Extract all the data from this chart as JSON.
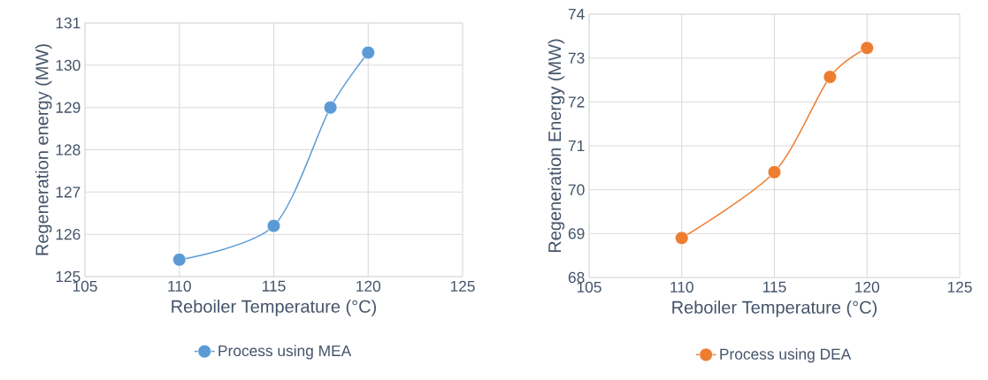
{
  "chart_data": [
    {
      "type": "line",
      "x": [
        110,
        115,
        118,
        120
      ],
      "xlabel": "Reboiler Temperature (°C)",
      "ylabel": "Regeneration energy (MW)",
      "series": [
        {
          "name": "Process using MEA",
          "color": "#5b9bd5",
          "values": [
            125.4,
            126.2,
            129.0,
            130.3
          ]
        }
      ],
      "xlim": [
        105,
        125
      ],
      "xticks": [
        105,
        110,
        115,
        120,
        125
      ],
      "ylim": [
        125,
        131
      ],
      "yticks": [
        125,
        126,
        127,
        128,
        129,
        130,
        131
      ],
      "grid": true,
      "legend": "bottom",
      "marker": "circle"
    },
    {
      "type": "line",
      "x": [
        110,
        115,
        118,
        120
      ],
      "xlabel": "Reboiler Temperature (°C)",
      "ylabel": "Regeneration Energy (MW)",
      "series": [
        {
          "name": "Process using DEA",
          "color": "#ed7d31",
          "values": [
            68.9,
            70.4,
            72.57,
            73.23
          ]
        }
      ],
      "xlim": [
        105,
        125
      ],
      "xticks": [
        105,
        110,
        115,
        120,
        125
      ],
      "ylim": [
        68,
        74
      ],
      "yticks": [
        68,
        69,
        70,
        71,
        72,
        73,
        74
      ],
      "grid": true,
      "legend": "bottom",
      "marker": "circle"
    }
  ]
}
